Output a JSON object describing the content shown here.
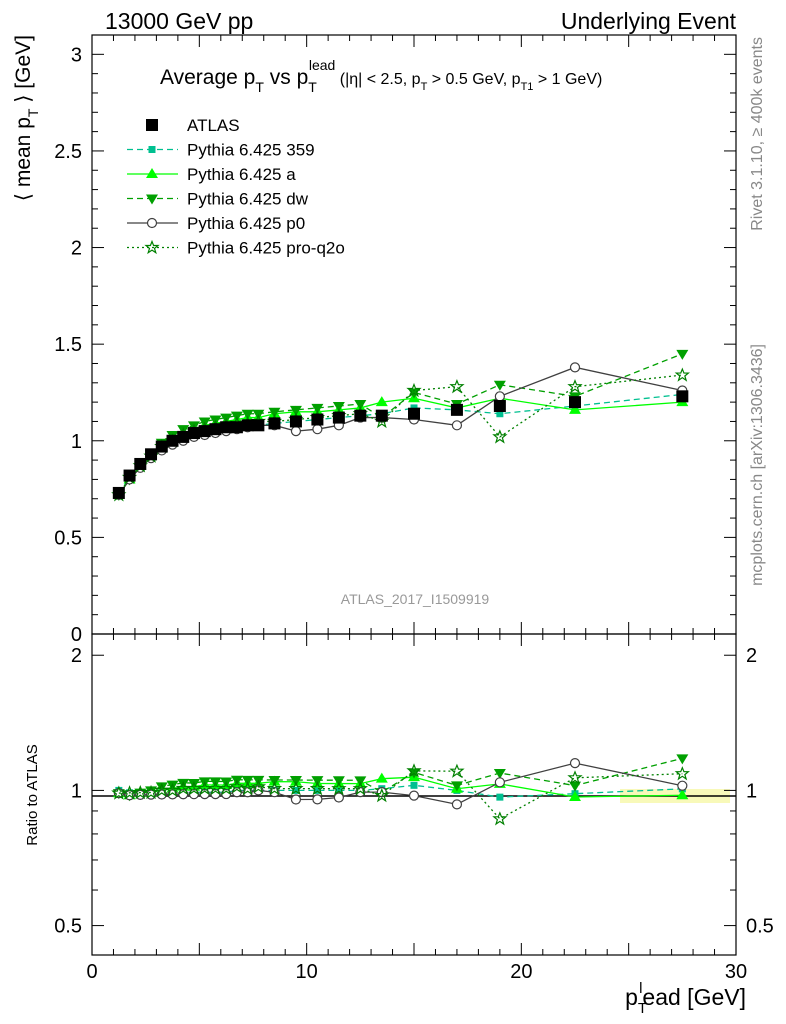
{
  "header": {
    "left": "13000 GeV pp",
    "right": "Underlying Event"
  },
  "side": {
    "rivet": "Rivet 3.1.10, ≥ 400k events",
    "mcplots": "mcplots.cern.ch [arXiv:1306.3436]"
  },
  "chart_data": [
    {
      "type": "scatter",
      "title": "Average pT vs pT^lead (|η| < 2.5, pT > 0.5 GeV, pT1 > 1 GeV)",
      "title_parts": {
        "main": "Average p",
        "sub1": "T",
        "vs": " vs p",
        "sub2": "T",
        "sup2": "lead",
        "cond_a": " (|η| < 2.5, p",
        "cond_sub_a": "T",
        "cond_b": " > 0.5 GeV, p",
        "cond_sub_b": "T1",
        "cond_c": " > 1 GeV)"
      },
      "ylabel": "⟨ mean pT ⟩ [GeV]",
      "ylabel_parts": {
        "a": "⟨ mean p",
        "sub": "T",
        "b": " ⟩ [GeV]"
      },
      "xlim": [
        0,
        30
      ],
      "ylim": [
        0,
        3.1
      ],
      "yticks": [
        "0",
        "0.5",
        "1",
        "1.5",
        "2",
        "2.5",
        "3"
      ],
      "watermark": "ATLAS_2017_I1509919",
      "legend_position": "top-left",
      "x": [
        1.25,
        1.75,
        2.25,
        2.75,
        3.25,
        3.75,
        4.25,
        4.75,
        5.25,
        5.75,
        6.25,
        6.75,
        7.25,
        7.75,
        8.5,
        9.5,
        10.5,
        11.5,
        12.5,
        13.5,
        15.0,
        17.0,
        19.0,
        22.5,
        27.5
      ],
      "series": [
        {
          "name": "ATLAS",
          "color": "#000000",
          "marker": "square",
          "line": "none",
          "values": [
            0.73,
            0.82,
            0.88,
            0.93,
            0.97,
            1.0,
            1.02,
            1.04,
            1.05,
            1.06,
            1.07,
            1.07,
            1.08,
            1.08,
            1.09,
            1.1,
            1.11,
            1.12,
            1.13,
            1.13,
            1.14,
            1.16,
            1.18,
            1.2,
            1.23
          ]
        },
        {
          "name": "Pythia 6.425 359",
          "color": "#00c090",
          "marker": "small-square",
          "line": "dashed",
          "values": [
            0.73,
            0.81,
            0.87,
            0.92,
            0.96,
            0.99,
            1.01,
            1.03,
            1.04,
            1.05,
            1.06,
            1.07,
            1.08,
            1.08,
            1.09,
            1.1,
            1.11,
            1.12,
            1.13,
            1.14,
            1.17,
            1.16,
            1.14,
            1.18,
            1.24
          ]
        },
        {
          "name": "Pythia 6.425 a",
          "color": "#00ff00",
          "marker": "triangle-up",
          "line": "solid",
          "values": [
            0.72,
            0.8,
            0.87,
            0.92,
            0.97,
            1.01,
            1.04,
            1.06,
            1.08,
            1.09,
            1.1,
            1.11,
            1.12,
            1.12,
            1.14,
            1.15,
            1.15,
            1.16,
            1.17,
            1.2,
            1.22,
            1.17,
            1.22,
            1.16,
            1.2
          ]
        },
        {
          "name": "Pythia 6.425 dw",
          "color": "#00a000",
          "marker": "triangle-down",
          "line": "dashed",
          "values": [
            0.72,
            0.8,
            0.87,
            0.93,
            0.99,
            1.03,
            1.06,
            1.08,
            1.1,
            1.11,
            1.12,
            1.13,
            1.14,
            1.14,
            1.15,
            1.16,
            1.17,
            1.18,
            1.19,
            1.12,
            1.25,
            1.19,
            1.29,
            1.23,
            1.45
          ]
        },
        {
          "name": "Pythia 6.425 p0",
          "color": "#404040",
          "marker": "open-circle",
          "line": "solid",
          "values": [
            0.72,
            0.8,
            0.86,
            0.91,
            0.95,
            0.98,
            1.0,
            1.02,
            1.03,
            1.04,
            1.05,
            1.06,
            1.07,
            1.08,
            1.08,
            1.05,
            1.06,
            1.08,
            1.12,
            1.12,
            1.11,
            1.08,
            1.23,
            1.38,
            1.26
          ]
        },
        {
          "name": "Pythia 6.425 pro-q2o",
          "color": "#008000",
          "marker": "star",
          "line": "dotted",
          "values": [
            0.72,
            0.81,
            0.87,
            0.92,
            0.97,
            1.0,
            1.03,
            1.05,
            1.06,
            1.07,
            1.08,
            1.09,
            1.09,
            1.1,
            1.1,
            1.11,
            1.12,
            1.13,
            1.14,
            1.1,
            1.26,
            1.28,
            1.02,
            1.28,
            1.34
          ]
        }
      ]
    },
    {
      "type": "scatter",
      "ylabel": "Ratio to ATLAS",
      "xlabel": "pT^lead [GeV]",
      "xlabel_parts": {
        "a": "p",
        "sub": "T",
        "sup": "l",
        "b": "ead [GeV]"
      },
      "xlim": [
        0,
        30
      ],
      "ylim": [
        0.43,
        2.23
      ],
      "yticks": [
        "0.5",
        "1",
        "2"
      ],
      "xticks": [
        "0",
        "10",
        "20",
        "30"
      ],
      "reference": 1.0
    }
  ]
}
